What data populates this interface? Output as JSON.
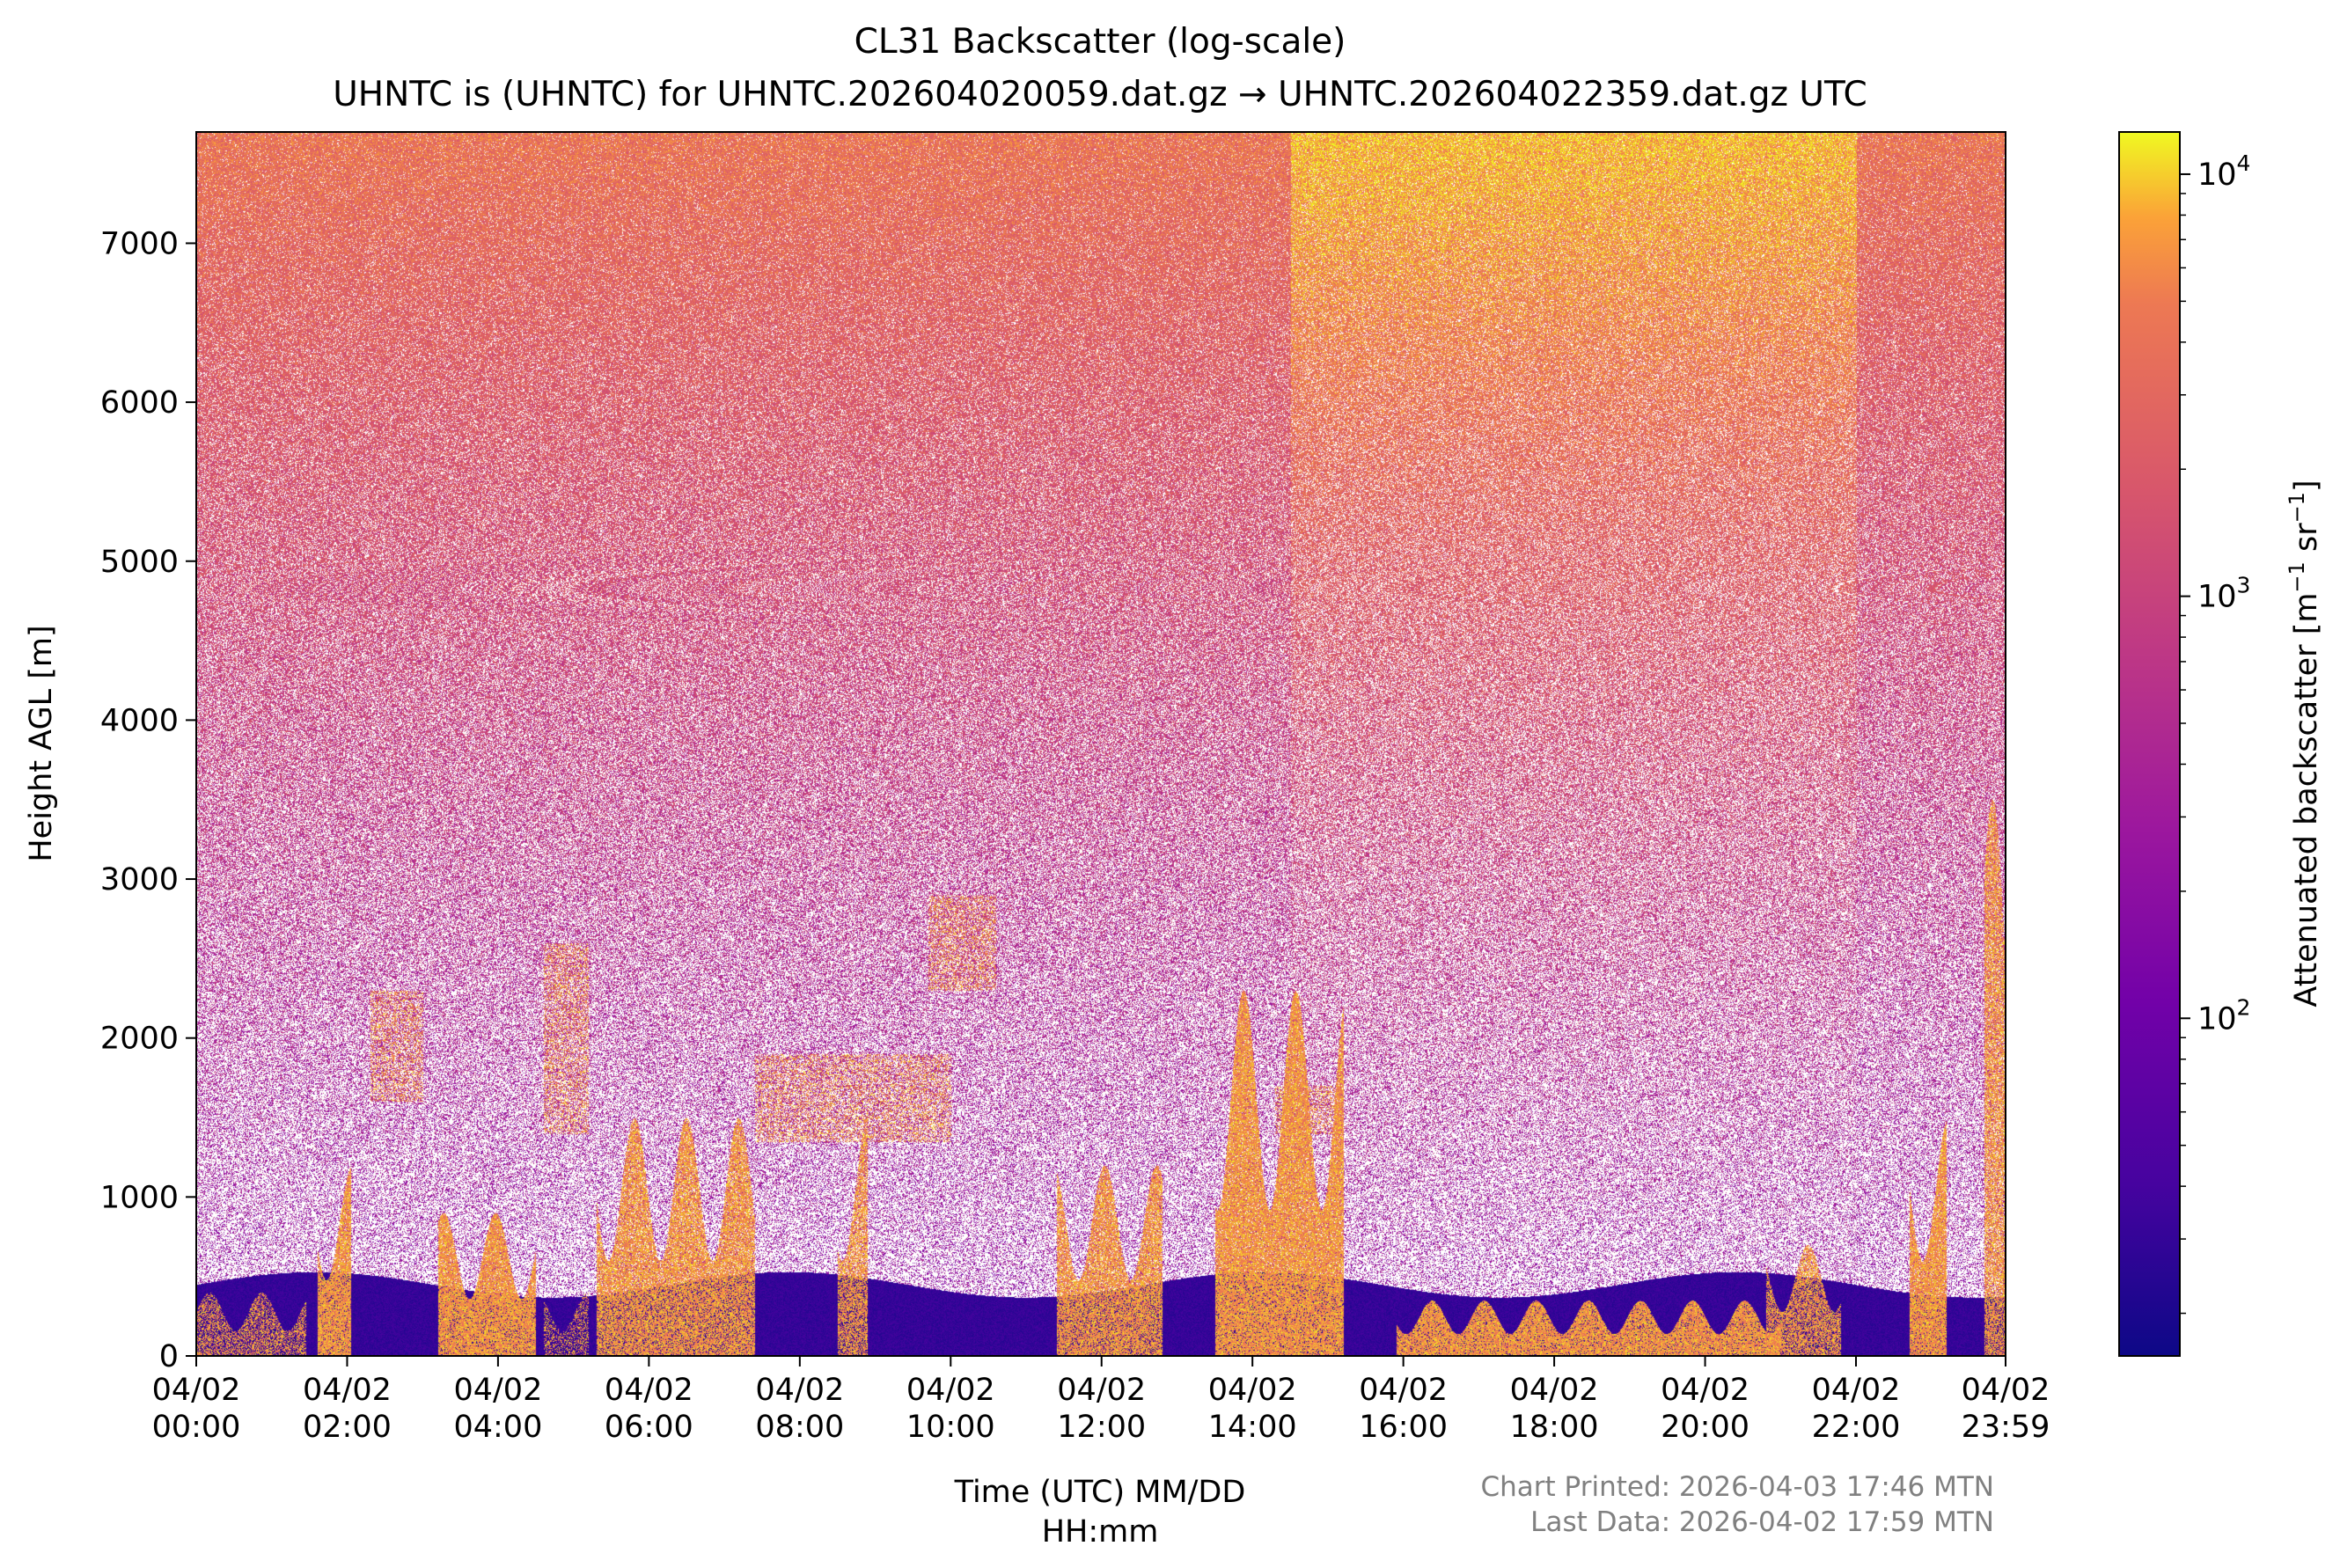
{
  "chart_data": {
    "type": "heatmap",
    "title": "CL31 Backscatter (log-scale)",
    "subtitle": "UHNTC is (UHNTC) for UHNTC.202604020059.dat.gz → UHNTC.202604022359.dat.gz UTC",
    "xlabel_line1": "Time (UTC) MM/DD",
    "xlabel_line2": "HH:mm",
    "ylabel": "Height AGL [m]",
    "colorbar_label_main": "Attenuated backscatter [m",
    "colorbar_label_exp1": "−1",
    "colorbar_label_mid": " sr",
    "colorbar_label_exp2": "−1",
    "colorbar_label_end": "]",
    "colormap": "plasma",
    "x_range_hours": [
      0,
      23.983
    ],
    "y_range_m": [
      0,
      7700
    ],
    "color_range_log10": [
      1.2,
      4.1
    ],
    "x_ticks": [
      {
        "hour": 0,
        "date": "04/02",
        "time": "00:00"
      },
      {
        "hour": 2,
        "date": "04/02",
        "time": "02:00"
      },
      {
        "hour": 4,
        "date": "04/02",
        "time": "04:00"
      },
      {
        "hour": 6,
        "date": "04/02",
        "time": "06:00"
      },
      {
        "hour": 8,
        "date": "04/02",
        "time": "08:00"
      },
      {
        "hour": 10,
        "date": "04/02",
        "time": "10:00"
      },
      {
        "hour": 12,
        "date": "04/02",
        "time": "12:00"
      },
      {
        "hour": 14,
        "date": "04/02",
        "time": "14:00"
      },
      {
        "hour": 16,
        "date": "04/02",
        "time": "16:00"
      },
      {
        "hour": 18,
        "date": "04/02",
        "time": "18:00"
      },
      {
        "hour": 20,
        "date": "04/02",
        "time": "20:00"
      },
      {
        "hour": 22,
        "date": "04/02",
        "time": "22:00"
      },
      {
        "hour": 23.983,
        "date": "04/02",
        "time": "23:59"
      }
    ],
    "y_ticks": [
      0,
      1000,
      2000,
      3000,
      4000,
      5000,
      6000,
      7000
    ],
    "colorbar_ticks": [
      {
        "log10": 2,
        "base": "10",
        "exp": "2"
      },
      {
        "log10": 3,
        "base": "10",
        "exp": "3"
      },
      {
        "log10": 4,
        "base": "10",
        "exp": "4"
      }
    ],
    "low_cloud_layers": [
      {
        "t0": 0.0,
        "t1": 1.45,
        "top": 400,
        "dense": 0.6
      },
      {
        "t0": 1.6,
        "t1": 2.05,
        "top": 1200,
        "dense": 1.0
      },
      {
        "t0": 3.2,
        "t1": 4.5,
        "top": 900,
        "dense": 1.0
      },
      {
        "t0": 4.6,
        "t1": 5.2,
        "top": 400,
        "dense": 0.4
      },
      {
        "t0": 5.3,
        "t1": 7.4,
        "top": 1500,
        "dense": 0.9
      },
      {
        "t0": 8.5,
        "t1": 8.9,
        "top": 1500,
        "dense": 0.8
      },
      {
        "t0": 11.4,
        "t1": 12.8,
        "top": 1200,
        "dense": 0.9
      },
      {
        "t0": 13.5,
        "t1": 15.2,
        "top": 2300,
        "dense": 1.0
      },
      {
        "t0": 15.9,
        "t1": 21.0,
        "top": 350,
        "dense": 1.0
      },
      {
        "t0": 20.8,
        "t1": 21.8,
        "top": 700,
        "dense": 0.8
      },
      {
        "t0": 22.7,
        "t1": 23.2,
        "top": 1500,
        "dense": 1.0
      },
      {
        "t0": 23.7,
        "t1": 23.98,
        "top": 3500,
        "dense": 0.8
      }
    ],
    "elevated_layers": [
      {
        "t0": 2.3,
        "t1": 3.0,
        "base": 1600,
        "top": 2300
      },
      {
        "t0": 4.6,
        "t1": 5.2,
        "base": 1400,
        "top": 2600
      },
      {
        "t0": 7.4,
        "t1": 10.0,
        "base": 1350,
        "top": 1900
      },
      {
        "t0": 9.7,
        "t1": 10.6,
        "base": 2300,
        "top": 2900
      },
      {
        "t0": 14.3,
        "t1": 15.2,
        "base": 1400,
        "top": 1700
      }
    ]
  },
  "footer": {
    "printed": "Chart Printed: 2026-04-03 17:46 MTN",
    "last_data": "Last Data: 2026-04-02 17:59 MTN"
  }
}
